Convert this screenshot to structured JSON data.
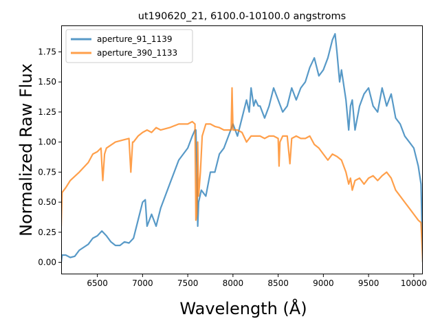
{
  "chart_data": {
    "type": "line",
    "title": "ut190620_21, 6100.0-10100.0 angstroms",
    "xlabel": "Wavelength (Å)",
    "ylabel": "Normalized Raw Flux",
    "xlim": [
      6100,
      10100
    ],
    "ylim": [
      -0.1,
      1.97
    ],
    "x_ticks": [
      6500,
      7000,
      7500,
      8000,
      8500,
      9000,
      9500,
      10000
    ],
    "y_ticks": [
      0.0,
      0.25,
      0.5,
      0.75,
      1.0,
      1.25,
      1.5,
      1.75
    ],
    "x_tick_labels": [
      "6500",
      "7000",
      "7500",
      "8000",
      "8500",
      "9000",
      "9500",
      "10000"
    ],
    "y_tick_labels": [
      "0.00",
      "0.25",
      "0.50",
      "0.75",
      "1.00",
      "1.25",
      "1.50",
      "1.75"
    ],
    "grid": false,
    "legend_position": "top-left",
    "series": [
      {
        "name": "aperture_91_1139",
        "color": "#1f77b4",
        "x": [
          6100,
          6110,
          6150,
          6200,
          6250,
          6300,
          6400,
          6450,
          6500,
          6550,
          6600,
          6650,
          6700,
          6750,
          6800,
          6850,
          6900,
          6950,
          7000,
          7030,
          7050,
          7100,
          7150,
          7200,
          7300,
          7400,
          7500,
          7550,
          7580,
          7590,
          7600,
          7610,
          7620,
          7650,
          7700,
          7750,
          7800,
          7850,
          7900,
          7950,
          8000,
          8050,
          8100,
          8150,
          8180,
          8200,
          8230,
          8250,
          8280,
          8300,
          8350,
          8400,
          8450,
          8500,
          8550,
          8600,
          8650,
          8700,
          8750,
          8800,
          8850,
          8900,
          8950,
          9000,
          9050,
          9100,
          9130,
          9150,
          9180,
          9200,
          9250,
          9280,
          9300,
          9320,
          9350,
          9400,
          9450,
          9500,
          9550,
          9600,
          9650,
          9700,
          9750,
          9800,
          9850,
          9900,
          9950,
          10000,
          10050,
          10080,
          10100
        ],
        "values": [
          0.0,
          0.06,
          0.06,
          0.04,
          0.05,
          0.1,
          0.15,
          0.2,
          0.22,
          0.26,
          0.22,
          0.17,
          0.14,
          0.14,
          0.17,
          0.16,
          0.2,
          0.35,
          0.5,
          0.52,
          0.3,
          0.4,
          0.3,
          0.45,
          0.65,
          0.85,
          0.95,
          1.05,
          1.1,
          1.1,
          0.8,
          0.3,
          0.5,
          0.6,
          0.55,
          0.75,
          0.75,
          0.9,
          0.95,
          1.05,
          1.15,
          1.05,
          1.2,
          1.35,
          1.25,
          1.45,
          1.3,
          1.35,
          1.3,
          1.3,
          1.2,
          1.3,
          1.45,
          1.35,
          1.25,
          1.3,
          1.45,
          1.35,
          1.45,
          1.5,
          1.62,
          1.7,
          1.55,
          1.6,
          1.7,
          1.85,
          1.9,
          1.75,
          1.5,
          1.6,
          1.35,
          1.1,
          1.3,
          1.35,
          1.1,
          1.3,
          1.4,
          1.45,
          1.3,
          1.25,
          1.45,
          1.3,
          1.4,
          1.2,
          1.15,
          1.05,
          1.0,
          0.95,
          0.8,
          0.65,
          0.0
        ]
      },
      {
        "name": "aperture_390_1133",
        "color": "#ff7f0e",
        "x": [
          6100,
          6110,
          6150,
          6200,
          6300,
          6400,
          6450,
          6500,
          6540,
          6560,
          6580,
          6600,
          6700,
          6800,
          6850,
          6870,
          6890,
          6900,
          6950,
          7000,
          7050,
          7100,
          7150,
          7200,
          7300,
          7400,
          7500,
          7550,
          7580,
          7590,
          7600,
          7610,
          7620,
          7640,
          7660,
          7700,
          7750,
          7800,
          7850,
          7900,
          7950,
          7980,
          7990,
          8000,
          8050,
          8100,
          8150,
          8200,
          8250,
          8300,
          8350,
          8400,
          8450,
          8500,
          8510,
          8520,
          8550,
          8600,
          8630,
          8650,
          8700,
          8750,
          8800,
          8850,
          8900,
          8950,
          9000,
          9050,
          9100,
          9150,
          9200,
          9250,
          9280,
          9300,
          9320,
          9350,
          9400,
          9450,
          9500,
          9550,
          9600,
          9650,
          9700,
          9750,
          9800,
          9850,
          9900,
          9950,
          10000,
          10050,
          10080,
          10100
        ],
        "values": [
          0.3,
          0.58,
          0.62,
          0.68,
          0.75,
          0.83,
          0.9,
          0.92,
          0.95,
          0.68,
          0.9,
          0.95,
          1.0,
          1.02,
          1.03,
          0.75,
          1.0,
          1.0,
          1.05,
          1.08,
          1.1,
          1.08,
          1.12,
          1.1,
          1.12,
          1.15,
          1.15,
          1.17,
          1.15,
          0.35,
          0.4,
          1.0,
          0.55,
          0.75,
          1.05,
          1.15,
          1.15,
          1.13,
          1.12,
          1.1,
          1.1,
          1.1,
          1.45,
          1.1,
          1.1,
          1.08,
          1.0,
          1.05,
          1.05,
          1.05,
          1.03,
          1.05,
          1.05,
          1.03,
          0.8,
          1.0,
          1.05,
          1.05,
          0.82,
          1.03,
          1.05,
          1.03,
          1.03,
          1.05,
          0.98,
          0.95,
          0.9,
          0.85,
          0.9,
          0.88,
          0.85,
          0.75,
          0.65,
          0.7,
          0.6,
          0.68,
          0.7,
          0.65,
          0.7,
          0.72,
          0.68,
          0.72,
          0.75,
          0.7,
          0.6,
          0.55,
          0.5,
          0.45,
          0.4,
          0.35,
          0.33,
          0.0
        ]
      }
    ]
  }
}
